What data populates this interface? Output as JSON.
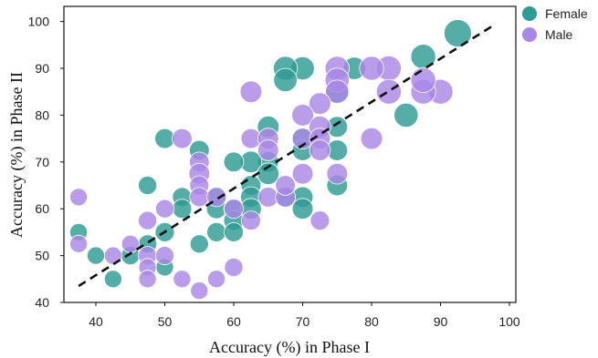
{
  "chart_data": {
    "type": "scatter",
    "xlabel": "Accuracy (%) in Phase I",
    "ylabel": "Accuracy (%) in Phase II",
    "xlim": [
      35,
      100
    ],
    "ylim": [
      40,
      100
    ],
    "xticks": [
      "40",
      "50",
      "60",
      "70",
      "80",
      "90",
      "100"
    ],
    "yticks": [
      "40",
      "50",
      "60",
      "70",
      "80",
      "90",
      "100"
    ],
    "grid": false,
    "legend_position": "top-right outside",
    "trend_line": {
      "style": "dashed",
      "from": [
        37.5,
        43.5
      ],
      "to": [
        97.5,
        99
      ]
    },
    "series": [
      {
        "name": "Female",
        "color": "#2e9c94",
        "points": [
          [
            92.5,
            97.5,
            1.0
          ],
          [
            87.5,
            92.5,
            0.85
          ],
          [
            85,
            80,
            0.8
          ],
          [
            77.5,
            90,
            0.7
          ],
          [
            70,
            90,
            0.75
          ],
          [
            67.5,
            90,
            0.8
          ],
          [
            67.5,
            87.5,
            0.75
          ],
          [
            75,
            85,
            0.7
          ],
          [
            65,
            77.5,
            0.65
          ],
          [
            75,
            77.5,
            0.6
          ],
          [
            70,
            75,
            0.6
          ],
          [
            75,
            72.5,
            0.6
          ],
          [
            65,
            70,
            0.6
          ],
          [
            70,
            72.5,
            0.6
          ],
          [
            62.5,
            70,
            0.65
          ],
          [
            60,
            70,
            0.55
          ],
          [
            65,
            67.5,
            0.65
          ],
          [
            62.5,
            65,
            0.55
          ],
          [
            75,
            65,
            0.6
          ],
          [
            50,
            75,
            0.55
          ],
          [
            55,
            72.5,
            0.55
          ],
          [
            47.5,
            65,
            0.45
          ],
          [
            52.5,
            62.5,
            0.5
          ],
          [
            52.5,
            60,
            0.5
          ],
          [
            57.5,
            62.5,
            0.6
          ],
          [
            57.5,
            60,
            0.55
          ],
          [
            60,
            60,
            0.55
          ],
          [
            62.5,
            62.5,
            0.6
          ],
          [
            62.5,
            60,
            0.6
          ],
          [
            60,
            57.5,
            0.55
          ],
          [
            70,
            62.5,
            0.6
          ],
          [
            70,
            60,
            0.6
          ],
          [
            67.5,
            62.5,
            0.55
          ],
          [
            57.5,
            55,
            0.5
          ],
          [
            60,
            55,
            0.5
          ],
          [
            55,
            52.5,
            0.45
          ],
          [
            50,
            55,
            0.5
          ],
          [
            47.5,
            52.5,
            0.45
          ],
          [
            45,
            50,
            0.45
          ],
          [
            50,
            47.5,
            0.4
          ],
          [
            40,
            50,
            0.4
          ],
          [
            37.5,
            55,
            0.4
          ],
          [
            42.5,
            45,
            0.4
          ]
        ]
      },
      {
        "name": "Male",
        "color": "#a987e6",
        "points": [
          [
            90,
            85,
            0.85
          ],
          [
            87.5,
            85,
            0.85
          ],
          [
            87.5,
            87.5,
            0.85
          ],
          [
            82.5,
            90,
            0.85
          ],
          [
            80,
            90,
            0.8
          ],
          [
            82.5,
            85,
            0.85
          ],
          [
            75,
            90,
            0.8
          ],
          [
            75,
            87.5,
            0.8
          ],
          [
            75,
            85,
            0.75
          ],
          [
            62.5,
            85,
            0.65
          ],
          [
            72.5,
            82.5,
            0.65
          ],
          [
            70,
            80,
            0.65
          ],
          [
            72.5,
            77.5,
            0.65
          ],
          [
            80,
            75,
            0.65
          ],
          [
            62.5,
            75,
            0.55
          ],
          [
            65,
            75,
            0.6
          ],
          [
            70,
            75,
            0.6
          ],
          [
            72.5,
            75,
            0.6
          ],
          [
            65,
            72.5,
            0.6
          ],
          [
            72.5,
            72.5,
            0.6
          ],
          [
            52.5,
            75,
            0.55
          ],
          [
            55,
            70,
            0.55
          ],
          [
            55,
            67.5,
            0.6
          ],
          [
            70,
            67.5,
            0.6
          ],
          [
            75,
            67.5,
            0.6
          ],
          [
            55,
            65,
            0.5
          ],
          [
            55,
            62.5,
            0.5
          ],
          [
            65,
            62.5,
            0.55
          ],
          [
            67.5,
            62.5,
            0.55
          ],
          [
            67.5,
            65,
            0.55
          ],
          [
            60,
            60,
            0.5
          ],
          [
            62.5,
            57.5,
            0.5
          ],
          [
            57.5,
            62.5,
            0.5
          ],
          [
            72.5,
            57.5,
            0.5
          ],
          [
            50,
            60,
            0.45
          ],
          [
            47.5,
            57.5,
            0.45
          ],
          [
            37.5,
            62.5,
            0.4
          ],
          [
            47.5,
            50,
            0.45
          ],
          [
            50,
            50,
            0.45
          ],
          [
            45,
            52.5,
            0.4
          ],
          [
            42.5,
            50,
            0.4
          ],
          [
            47.5,
            47.5,
            0.4
          ],
          [
            47.5,
            45,
            0.4
          ],
          [
            52.5,
            45,
            0.4
          ],
          [
            55,
            42.5,
            0.4
          ],
          [
            57.5,
            45,
            0.4
          ],
          [
            60,
            47.5,
            0.45
          ],
          [
            37.5,
            52.5,
            0.4
          ]
        ]
      }
    ]
  }
}
